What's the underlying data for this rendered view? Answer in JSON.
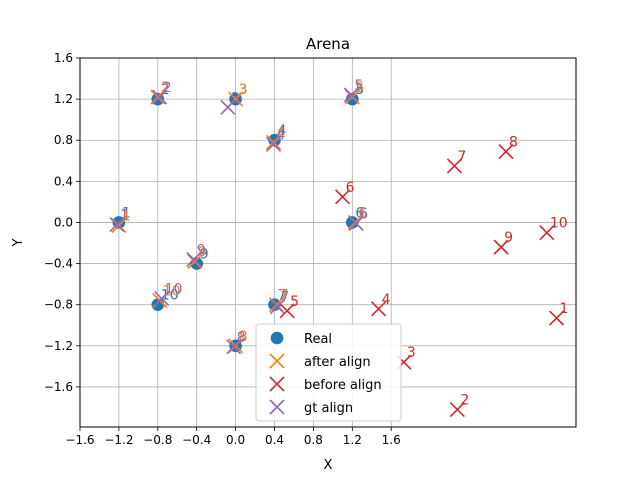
{
  "chart_data": {
    "type": "scatter",
    "title": "Arena",
    "xlabel": "X",
    "ylabel": "Y",
    "xlim": [
      -1.6,
      3.5
    ],
    "ylim": [
      -1.99,
      1.6
    ],
    "xticks": [
      -1.6,
      -1.2,
      -0.8,
      -0.4,
      0.0,
      0.4,
      0.8,
      1.2,
      1.6
    ],
    "yticks": [
      -1.6,
      -1.2,
      -0.8,
      -0.4,
      0.0,
      0.4,
      0.8,
      1.2,
      1.6
    ],
    "xtick_labels": [
      "−1.6",
      "−1.2",
      "−0.8",
      "−0.4",
      "0.0",
      "0.4",
      "0.8",
      "1.2",
      "1.6"
    ],
    "ytick_labels": [
      "−1.6",
      "−1.2",
      "−0.8",
      "−0.4",
      "0.0",
      "0.4",
      "0.8",
      "1.2",
      "1.6"
    ],
    "grid": true,
    "legend_position": "lower-center",
    "series": [
      {
        "name": "Real",
        "marker": "circle",
        "color": "#1f77b4",
        "points": [
          {
            "id": "1",
            "x": -1.2,
            "y": 0.0
          },
          {
            "id": "2",
            "x": -0.8,
            "y": 1.2
          },
          {
            "id": "3",
            "x": 0.0,
            "y": 1.2
          },
          {
            "id": "4",
            "x": 0.4,
            "y": 0.8
          },
          {
            "id": "5",
            "x": 1.2,
            "y": 1.2
          },
          {
            "id": "6",
            "x": 1.2,
            "y": 0.0
          },
          {
            "id": "7",
            "x": 0.4,
            "y": -0.8
          },
          {
            "id": "8",
            "x": 0.0,
            "y": -1.2
          },
          {
            "id": "9",
            "x": -0.4,
            "y": -0.4
          },
          {
            "id": "10",
            "x": -0.8,
            "y": -0.8
          }
        ]
      },
      {
        "name": "after align",
        "marker": "x",
        "color": "#ff7f0e",
        "points": [
          {
            "id": "1",
            "x": -1.2,
            "y": -0.03
          },
          {
            "id": "2",
            "x": -0.8,
            "y": 1.22
          },
          {
            "id": "3",
            "x": 0.0,
            "y": 1.2
          },
          {
            "id": "4",
            "x": 0.39,
            "y": 0.78
          },
          {
            "id": "5",
            "x": 1.2,
            "y": 1.22
          },
          {
            "id": "6",
            "x": 1.23,
            "y": 0.0
          },
          {
            "id": "7",
            "x": 0.42,
            "y": -0.8
          },
          {
            "id": "8",
            "x": 0.0,
            "y": -1.2
          },
          {
            "id": "9",
            "x": -0.42,
            "y": -0.38
          },
          {
            "id": "10",
            "x": -0.78,
            "y": -0.76
          }
        ]
      },
      {
        "name": "before align",
        "marker": "x",
        "color": "#d62728",
        "points": [
          {
            "id": "1",
            "x": 3.3,
            "y": -0.93
          },
          {
            "id": "2",
            "x": 2.28,
            "y": -1.82
          },
          {
            "id": "3",
            "x": 1.73,
            "y": -1.36
          },
          {
            "id": "4",
            "x": 1.47,
            "y": -0.84
          },
          {
            "id": "5",
            "x": 0.53,
            "y": -0.86
          },
          {
            "id": "6",
            "x": 1.1,
            "y": 0.25
          },
          {
            "id": "7",
            "x": 2.25,
            "y": 0.55
          },
          {
            "id": "8",
            "x": 2.78,
            "y": 0.69
          },
          {
            "id": "9",
            "x": 2.73,
            "y": -0.24
          },
          {
            "id": "10",
            "x": 3.2,
            "y": -0.1
          }
        ]
      },
      {
        "name": "gt align",
        "marker": "x",
        "color": "#9467bd",
        "points": [
          {
            "id": "1",
            "x": -1.22,
            "y": -0.02
          },
          {
            "id": "2",
            "x": -0.78,
            "y": 1.22
          },
          {
            "id": "3",
            "x": -0.08,
            "y": 1.12
          },
          {
            "id": "4",
            "x": 0.39,
            "y": 0.76
          },
          {
            "id": "5",
            "x": 1.19,
            "y": 1.24
          },
          {
            "id": "6",
            "x": 1.24,
            "y": -0.01
          },
          {
            "id": "7",
            "x": 0.43,
            "y": -0.82
          },
          {
            "id": "8",
            "x": -0.02,
            "y": -1.21
          },
          {
            "id": "9",
            "x": -0.43,
            "y": -0.36
          },
          {
            "id": "10",
            "x": -0.76,
            "y": -0.74
          }
        ]
      }
    ]
  }
}
